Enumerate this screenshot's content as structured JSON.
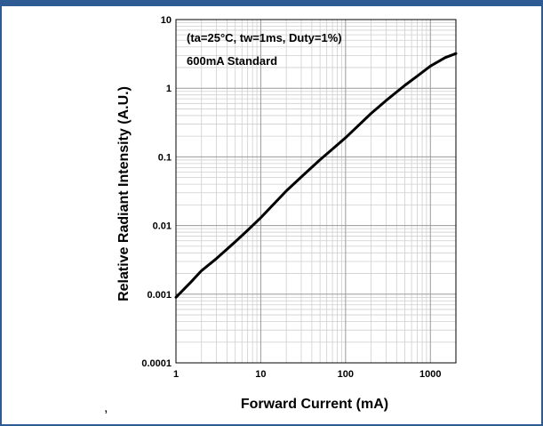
{
  "page": {
    "stray_mark": ",",
    "border_color": "#2f5b94"
  },
  "chart_data": {
    "type": "line",
    "title": "",
    "xlabel": "Forward Current (mA)",
    "ylabel": "Relative Radiant Intensity (A.U.)",
    "x_scale": "log",
    "y_scale": "log",
    "xlim": [
      1,
      2000
    ],
    "ylim": [
      0.0001,
      10
    ],
    "x_ticks": [
      {
        "value": 1,
        "label": "1"
      },
      {
        "value": 10,
        "label": "10"
      },
      {
        "value": 100,
        "label": "100"
      },
      {
        "value": 1000,
        "label": "1000"
      }
    ],
    "y_ticks": [
      {
        "value": 10,
        "label": "10"
      },
      {
        "value": 1,
        "label": "1"
      },
      {
        "value": 0.1,
        "label": "0.1"
      },
      {
        "value": 0.01,
        "label": "0.01"
      },
      {
        "value": 0.001,
        "label": "0.001"
      },
      {
        "value": 0.0001,
        "label": "0.0001"
      }
    ],
    "grid": true,
    "annotations": [
      "(ta=25°C, tw=1ms, Duty=1%)",
      "600mA Standard"
    ],
    "series": [
      {
        "color": "#000000",
        "x": [
          1,
          1.5,
          2,
          3,
          5,
          7,
          10,
          20,
          30,
          50,
          70,
          100,
          200,
          300,
          500,
          700,
          1000,
          1500,
          2000
        ],
        "y": [
          0.0009,
          0.0015,
          0.0022,
          0.0033,
          0.0058,
          0.0085,
          0.013,
          0.032,
          0.051,
          0.091,
          0.13,
          0.19,
          0.43,
          0.66,
          1.1,
          1.5,
          2.1,
          2.8,
          3.2
        ]
      }
    ]
  }
}
